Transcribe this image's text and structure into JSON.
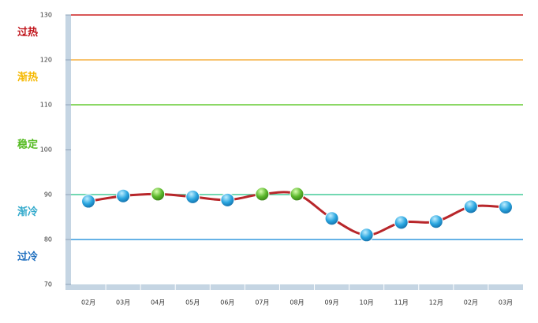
{
  "chart_data": {
    "type": "line",
    "categories": [
      "02月",
      "03月",
      "04月",
      "05月",
      "06月",
      "07月",
      "08月",
      "09月",
      "10月",
      "11月",
      "12月",
      "02月",
      "03月"
    ],
    "series": [
      {
        "color": "#b8262a",
        "values": [
          88.5,
          89.7,
          90.1,
          89.5,
          88.8,
          90.1,
          90.1,
          84.7,
          81.0,
          83.8,
          84.0,
          87.3,
          87.2
        ],
        "marker_colors": [
          "blue",
          "blue",
          "green",
          "blue",
          "blue",
          "green",
          "green",
          "blue",
          "blue",
          "blue",
          "blue",
          "blue",
          "blue"
        ]
      }
    ],
    "ylim": [
      70,
      130
    ],
    "yticks": [
      70,
      80,
      90,
      100,
      110,
      120,
      130
    ],
    "reference_lines": [
      {
        "value": 130,
        "color": "#cc1f1f"
      },
      {
        "value": 120,
        "color": "#f5b041"
      },
      {
        "value": 110,
        "color": "#66cc33"
      },
      {
        "value": 90,
        "color": "#44cc99"
      },
      {
        "value": 80,
        "color": "#3399dd"
      }
    ],
    "zones": [
      {
        "label": "过热",
        "color": "#c0141b"
      },
      {
        "label": "渐热",
        "color": "#f5b800"
      },
      {
        "label": "稳定",
        "color": "#55bb22"
      },
      {
        "label": "渐冷",
        "color": "#33aacc"
      },
      {
        "label": "过冷",
        "color": "#1f6fbf"
      }
    ]
  }
}
